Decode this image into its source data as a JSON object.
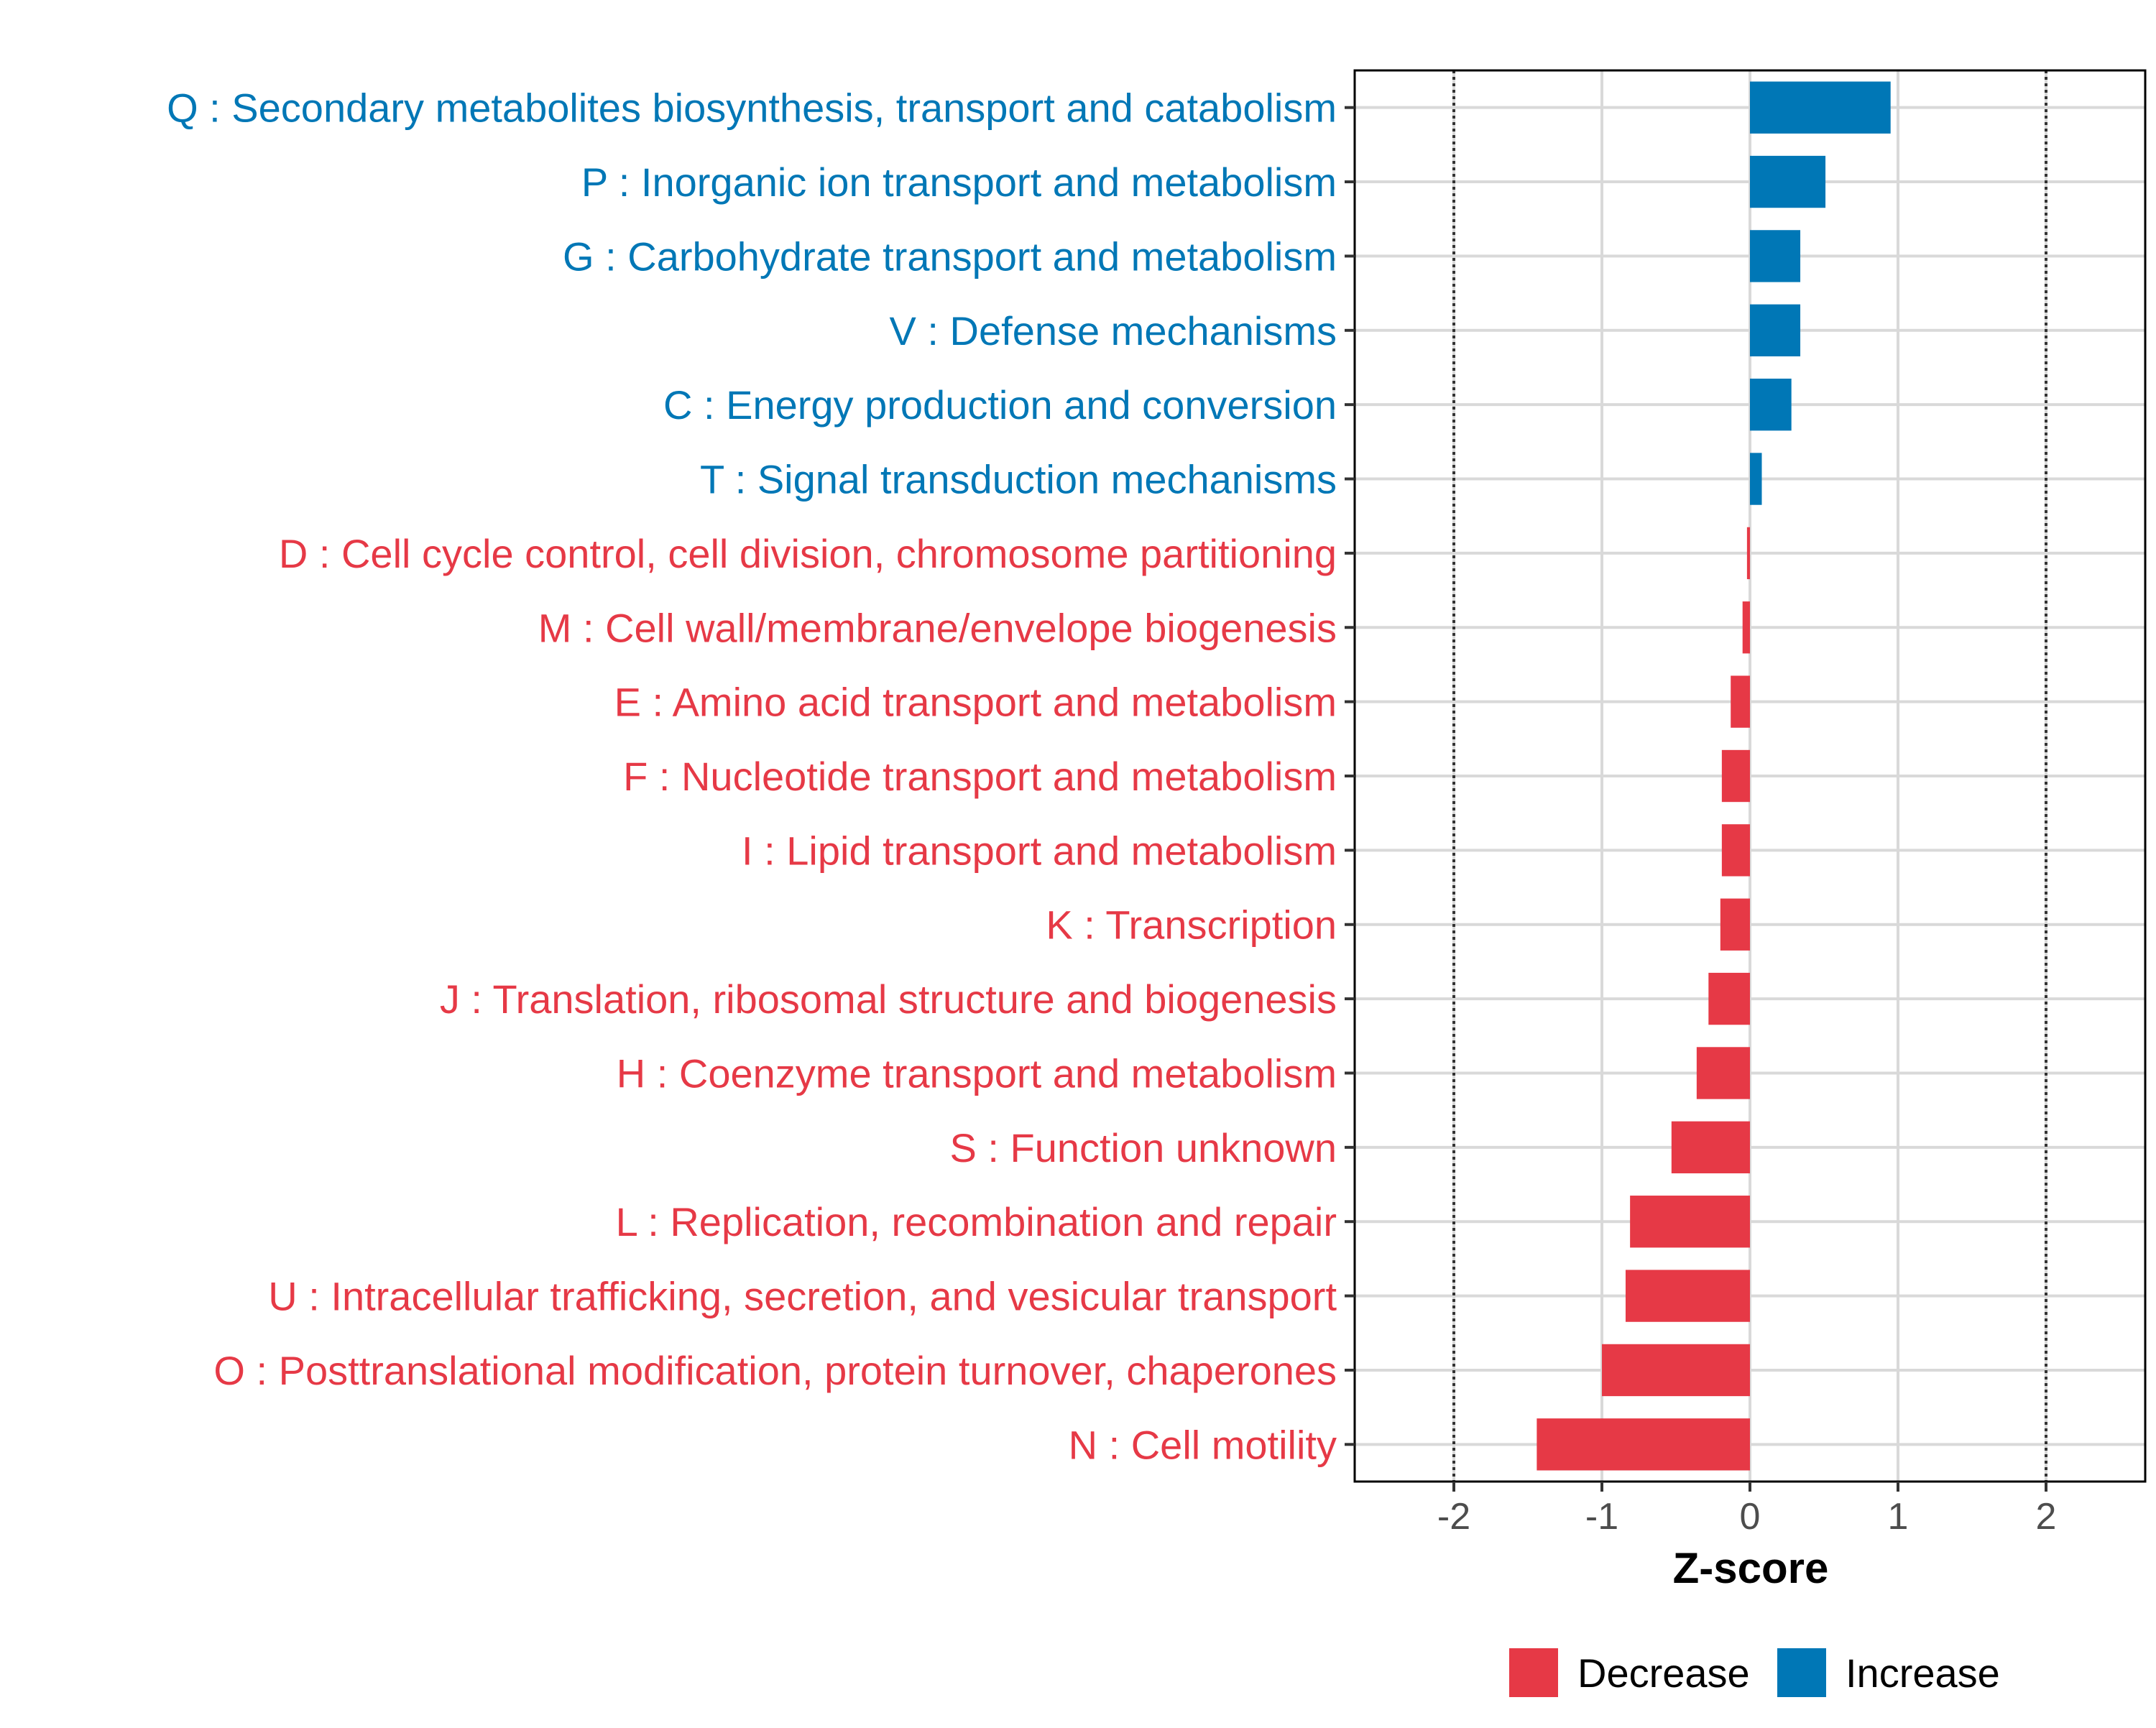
{
  "chart_data": {
    "type": "bar",
    "orientation": "horizontal",
    "title": "",
    "xlabel": "Z-score",
    "ylabel": "",
    "xlim": [
      -2.67,
      2.67
    ],
    "x_ticks": [
      -2,
      -1,
      0,
      1,
      2
    ],
    "x_tick_labels": [
      "-2",
      "-1",
      "0",
      "1",
      "2"
    ],
    "reference_lines": [
      -2,
      2
    ],
    "grid": true,
    "legend_position": "bottom",
    "colors": {
      "Decrease": "#E63946",
      "Increase": "#0077B6"
    },
    "legend": [
      {
        "label": "Decrease",
        "color": "#E63946"
      },
      {
        "label": "Increase",
        "color": "#0077B6"
      }
    ],
    "categories": [
      "Q : Secondary metabolites biosynthesis, transport and catabolism",
      "P : Inorganic ion transport and metabolism",
      "G : Carbohydrate transport and metabolism",
      "V : Defense mechanisms",
      "C : Energy production and conversion",
      "T : Signal transduction mechanisms",
      "D : Cell cycle control, cell division, chromosome partitioning",
      "M : Cell wall/membrane/envelope biogenesis",
      "E : Amino acid transport and metabolism",
      "F : Nucleotide transport and metabolism",
      "I : Lipid transport and metabolism",
      "K : Transcription",
      "J : Translation, ribosomal structure and biogenesis",
      "H : Coenzyme transport and metabolism",
      "S : Function unknown",
      "L : Replication, recombination and repair",
      "U : Intracellular trafficking, secretion, and vesicular transport",
      "O : Posttranslational modification, protein turnover, chaperones",
      "N : Cell motility"
    ],
    "values": [
      0.95,
      0.51,
      0.34,
      0.34,
      0.28,
      0.08,
      -0.02,
      -0.05,
      -0.13,
      -0.19,
      -0.19,
      -0.2,
      -0.28,
      -0.36,
      -0.53,
      -0.81,
      -0.84,
      -1.0,
      -1.44
    ],
    "groups": [
      "Increase",
      "Increase",
      "Increase",
      "Increase",
      "Increase",
      "Increase",
      "Decrease",
      "Decrease",
      "Decrease",
      "Decrease",
      "Decrease",
      "Decrease",
      "Decrease",
      "Decrease",
      "Decrease",
      "Decrease",
      "Decrease",
      "Decrease",
      "Decrease"
    ]
  }
}
